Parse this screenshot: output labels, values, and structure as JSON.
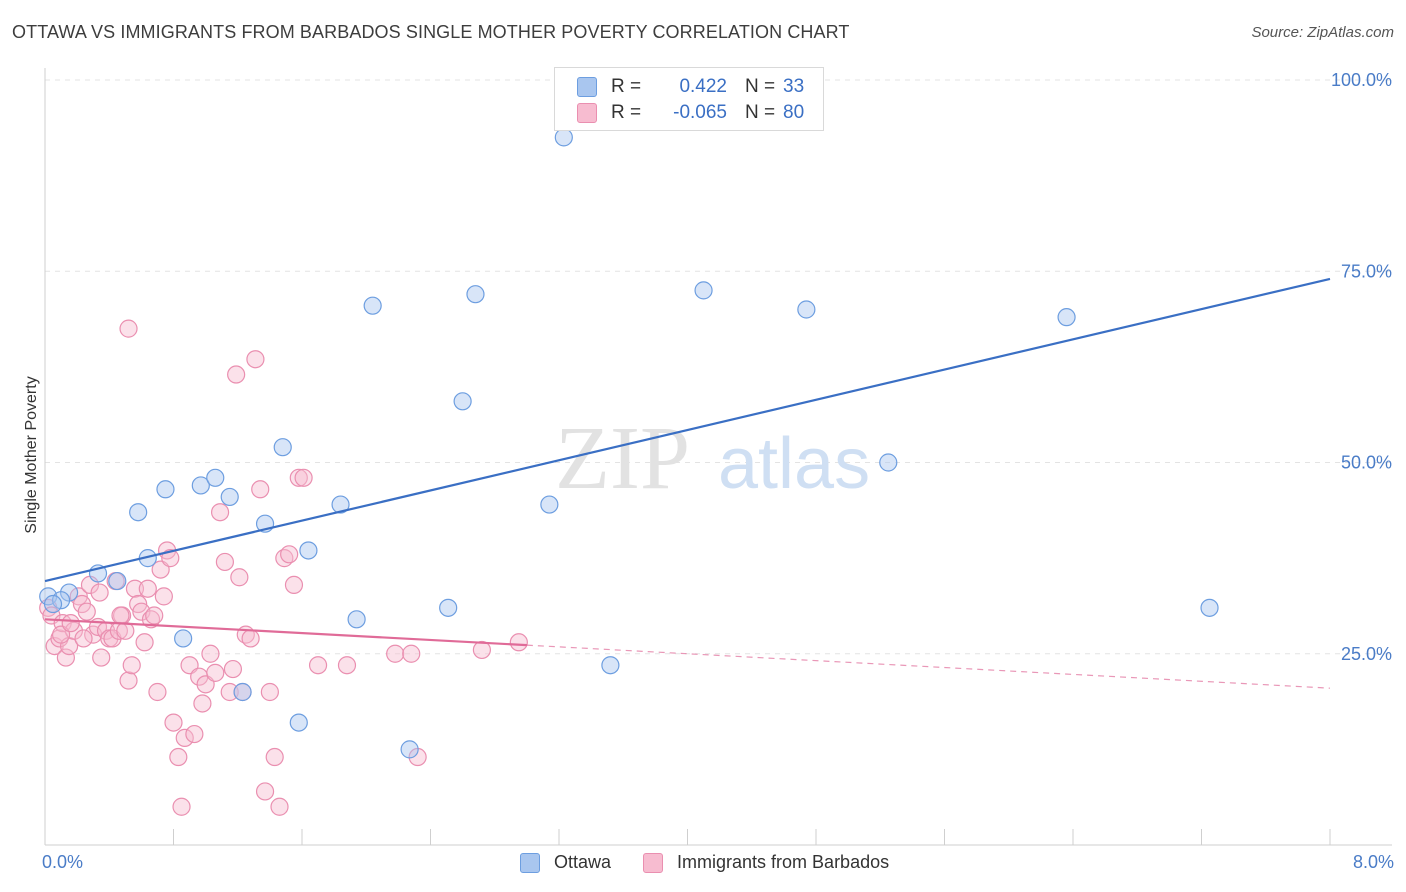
{
  "header": {
    "title": "OTTAWA VS IMMIGRANTS FROM BARBADOS SINGLE MOTHER POVERTY CORRELATION CHART",
    "source": "Source: ZipAtlas.com"
  },
  "watermark": {
    "zip": "ZIP",
    "atlas": "atlas"
  },
  "legend": {
    "rows": [
      {
        "r_label": "R =",
        "r_value": "0.422",
        "n_label": "N =",
        "n_value": "33",
        "color": "#a9c6ef",
        "stroke": "#6d9ee0"
      },
      {
        "r_label": "R =",
        "r_value": "-0.065",
        "n_label": "N =",
        "n_value": "80",
        "color": "#f7bcd0",
        "stroke": "#ea8fb0"
      }
    ]
  },
  "chart_data": {
    "type": "scatter",
    "title": "OTTAWA VS IMMIGRANTS FROM BARBADOS SINGLE MOTHER POVERTY CORRELATION CHART",
    "xlabel": "",
    "ylabel": "Single Mother Poverty",
    "xlim": [
      0,
      8
    ],
    "ylim": [
      0,
      100
    ],
    "x_tick_labels": [
      {
        "value": 0,
        "label": "0.0%"
      },
      {
        "value": 8,
        "label": "8.0%"
      }
    ],
    "y_tick_labels": [
      {
        "value": 25,
        "label": "25.0%"
      },
      {
        "value": 50,
        "label": "50.0%"
      },
      {
        "value": 75,
        "label": "75.0%"
      },
      {
        "value": 100,
        "label": "100.0%"
      }
    ],
    "grid": true,
    "legend_position": "top-center",
    "series": [
      {
        "name": "Ottawa",
        "color": "#a9c6ef",
        "stroke": "#6d9ee0",
        "trend": {
          "x": [
            0,
            8
          ],
          "y": [
            34.5,
            74.0
          ],
          "color": "#3a6fc4",
          "dashed_from": null
        },
        "points": [
          [
            0.02,
            32.5
          ],
          [
            0.15,
            33.0
          ],
          [
            0.33,
            35.5
          ],
          [
            0.45,
            34.5
          ],
          [
            0.58,
            43.5
          ],
          [
            0.64,
            37.5
          ],
          [
            0.75,
            46.5
          ],
          [
            0.86,
            27.0
          ],
          [
            0.97,
            47.0
          ],
          [
            1.06,
            48.0
          ],
          [
            1.15,
            45.5
          ],
          [
            1.23,
            20.0
          ],
          [
            1.37,
            42.0
          ],
          [
            1.48,
            52.0
          ],
          [
            1.58,
            16.0
          ],
          [
            1.64,
            38.5
          ],
          [
            1.84,
            44.5
          ],
          [
            1.94,
            29.5
          ],
          [
            2.04,
            70.5
          ],
          [
            2.27,
            12.5
          ],
          [
            2.51,
            31.0
          ],
          [
            2.6,
            58.0
          ],
          [
            2.68,
            72.0
          ],
          [
            3.14,
            44.5
          ],
          [
            3.23,
            92.5
          ],
          [
            3.52,
            23.5
          ],
          [
            4.1,
            72.5
          ],
          [
            4.74,
            70.0
          ],
          [
            5.25,
            50.0
          ],
          [
            6.36,
            69.0
          ],
          [
            7.25,
            31.0
          ],
          [
            0.1,
            32.0
          ],
          [
            0.05,
            31.5
          ]
        ]
      },
      {
        "name": "Immigrants from Barbados",
        "color": "#f7bcd0",
        "stroke": "#ea8fb0",
        "trend": {
          "x": [
            0,
            8
          ],
          "y": [
            29.5,
            20.5
          ],
          "color": "#e06b98",
          "dashed_from": 3.0
        },
        "points": [
          [
            0.02,
            31.0
          ],
          [
            0.04,
            30.0
          ],
          [
            0.06,
            26.0
          ],
          [
            0.09,
            27.0
          ],
          [
            0.11,
            29.0
          ],
          [
            0.13,
            24.5
          ],
          [
            0.15,
            26.0
          ],
          [
            0.18,
            28.0
          ],
          [
            0.21,
            32.5
          ],
          [
            0.23,
            31.5
          ],
          [
            0.26,
            30.5
          ],
          [
            0.28,
            34.0
          ],
          [
            0.3,
            27.5
          ],
          [
            0.33,
            28.5
          ],
          [
            0.35,
            24.5
          ],
          [
            0.38,
            28.0
          ],
          [
            0.4,
            27.0
          ],
          [
            0.42,
            27.0
          ],
          [
            0.44,
            34.5
          ],
          [
            0.46,
            28.0
          ],
          [
            0.48,
            30.0
          ],
          [
            0.5,
            28.0
          ],
          [
            0.52,
            21.5
          ],
          [
            0.54,
            23.5
          ],
          [
            0.56,
            33.5
          ],
          [
            0.58,
            31.5
          ],
          [
            0.6,
            30.5
          ],
          [
            0.62,
            26.5
          ],
          [
            0.64,
            33.5
          ],
          [
            0.66,
            29.5
          ],
          [
            0.68,
            30.0
          ],
          [
            0.52,
            67.5
          ],
          [
            0.72,
            36.0
          ],
          [
            0.74,
            32.5
          ],
          [
            0.76,
            38.5
          ],
          [
            0.78,
            37.5
          ],
          [
            0.8,
            16.0
          ],
          [
            0.83,
            11.5
          ],
          [
            0.85,
            5.0
          ],
          [
            0.87,
            14.0
          ],
          [
            0.9,
            23.5
          ],
          [
            0.93,
            14.5
          ],
          [
            0.96,
            22.0
          ],
          [
            0.98,
            18.5
          ],
          [
            1.0,
            21.0
          ],
          [
            1.03,
            25.0
          ],
          [
            1.06,
            22.5
          ],
          [
            1.09,
            43.5
          ],
          [
            1.12,
            37.0
          ],
          [
            1.15,
            20.0
          ],
          [
            1.17,
            23.0
          ],
          [
            1.19,
            61.5
          ],
          [
            1.21,
            35.0
          ],
          [
            1.23,
            20.0
          ],
          [
            1.25,
            27.5
          ],
          [
            1.28,
            27.0
          ],
          [
            1.31,
            63.5
          ],
          [
            1.34,
            46.5
          ],
          [
            1.37,
            7.0
          ],
          [
            1.4,
            20.0
          ],
          [
            1.43,
            11.5
          ],
          [
            1.46,
            5.0
          ],
          [
            1.49,
            37.5
          ],
          [
            1.52,
            38.0
          ],
          [
            1.55,
            34.0
          ],
          [
            1.58,
            48.0
          ],
          [
            1.61,
            48.0
          ],
          [
            1.7,
            23.5
          ],
          [
            1.88,
            23.5
          ],
          [
            2.18,
            25.0
          ],
          [
            2.28,
            25.0
          ],
          [
            2.32,
            11.5
          ],
          [
            2.72,
            25.5
          ],
          [
            2.95,
            26.5
          ],
          [
            0.1,
            27.5
          ],
          [
            0.16,
            29.0
          ],
          [
            0.24,
            27.0
          ],
          [
            0.34,
            33.0
          ],
          [
            0.47,
            30.0
          ],
          [
            0.7,
            20.0
          ]
        ]
      }
    ]
  }
}
